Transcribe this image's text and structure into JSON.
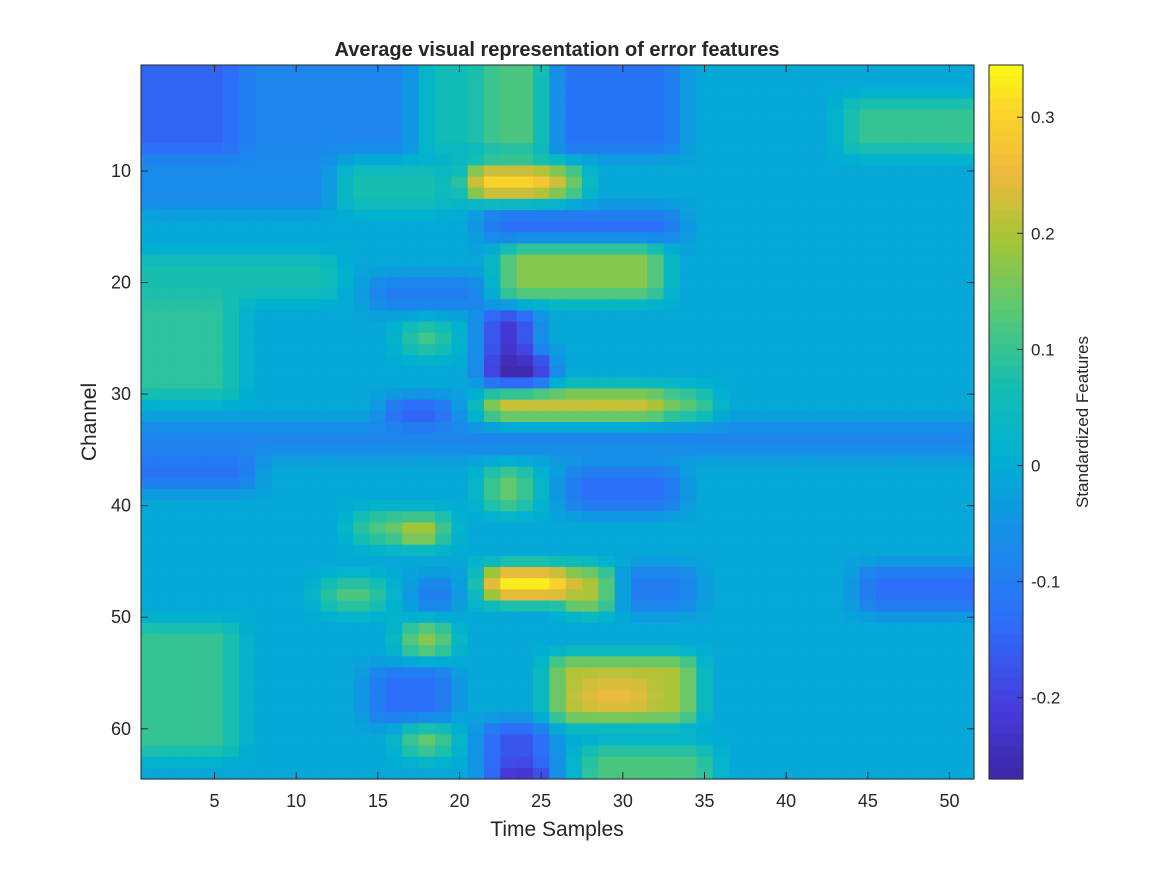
{
  "chart_data": {
    "type": "heatmap",
    "title": "Average visual representation of error features",
    "xlabel": "Time Samples",
    "ylabel": "Channel",
    "colorbar_label": "Standardized Features",
    "colormap": "parula",
    "x_range": [
      1,
      51
    ],
    "y_range": [
      1,
      64
    ],
    "y_reversed": true,
    "xticks": [
      5,
      10,
      15,
      20,
      25,
      30,
      35,
      40,
      45,
      50
    ],
    "yticks": [
      10,
      20,
      30,
      40,
      50,
      60
    ],
    "clim": [
      -0.27,
      0.345
    ],
    "colorbar_ticks": [
      0.3,
      0.2,
      0.1,
      0,
      -0.1,
      -0.2
    ],
    "colorbar_tick_labels": [
      "0.3",
      "0.2",
      "0.1",
      "0",
      "-0.1",
      "-0.2"
    ],
    "baseline_value": -0.01,
    "features": [
      {
        "channels": [
          1,
          8
        ],
        "samples": [
          1,
          6
        ],
        "value": -0.15
      },
      {
        "channels": [
          1,
          8
        ],
        "samples": [
          7,
          17
        ],
        "value": -0.08
      },
      {
        "channels": [
          1,
          8
        ],
        "samples": [
          18,
          21
        ],
        "value": 0.06
      },
      {
        "channels": [
          1,
          8
        ],
        "samples": [
          22,
          25
        ],
        "value": 0.12
      },
      {
        "channels": [
          1,
          8
        ],
        "samples": [
          26,
          33
        ],
        "value": -0.12
      },
      {
        "channels": [
          4,
          8
        ],
        "samples": [
          44,
          51
        ],
        "value": 0.1
      },
      {
        "channels": [
          9,
          13
        ],
        "samples": [
          1,
          12
        ],
        "value": -0.07
      },
      {
        "channels": [
          10,
          13
        ],
        "samples": [
          13,
          19
        ],
        "value": 0.07
      },
      {
        "channels": [
          10,
          12
        ],
        "samples": [
          21,
          25
        ],
        "value": 0.3
      },
      {
        "channels": [
          10,
          12
        ],
        "samples": [
          26,
          27
        ],
        "value": 0.2
      },
      {
        "channels": [
          14,
          16
        ],
        "samples": [
          22,
          33
        ],
        "value": -0.13
      },
      {
        "channels": [
          17,
          21
        ],
        "samples": [
          23,
          32
        ],
        "value": 0.17
      },
      {
        "channels": [
          18,
          21
        ],
        "samples": [
          1,
          12
        ],
        "value": 0.07
      },
      {
        "channels": [
          20,
          22
        ],
        "samples": [
          15,
          21
        ],
        "value": -0.1
      },
      {
        "channels": [
          22,
          30
        ],
        "samples": [
          1,
          6
        ],
        "value": 0.09
      },
      {
        "channels": [
          23,
          26
        ],
        "samples": [
          22,
          24
        ],
        "value": -0.22
      },
      {
        "channels": [
          24,
          26
        ],
        "samples": [
          17,
          19
        ],
        "value": 0.11
      },
      {
        "channels": [
          27,
          29
        ],
        "samples": [
          22,
          25
        ],
        "value": -0.26
      },
      {
        "channels": [
          30,
          32
        ],
        "samples": [
          22,
          32
        ],
        "value": 0.22
      },
      {
        "channels": [
          30,
          32
        ],
        "samples": [
          33,
          35
        ],
        "value": 0.13
      },
      {
        "channels": [
          31,
          32
        ],
        "samples": [
          16,
          19
        ],
        "value": -0.17
      },
      {
        "channels": [
          33,
          35
        ],
        "samples": [
          1,
          51
        ],
        "value": -0.08
      },
      {
        "channels": [
          36,
          38
        ],
        "samples": [
          1,
          7
        ],
        "value": -0.12
      },
      {
        "channels": [
          37,
          40
        ],
        "samples": [
          22,
          24
        ],
        "value": 0.14
      },
      {
        "channels": [
          37,
          40
        ],
        "samples": [
          27,
          33
        ],
        "value": -0.13
      },
      {
        "channels": [
          41,
          43
        ],
        "samples": [
          14,
          19
        ],
        "value": 0.12
      },
      {
        "channels": [
          42,
          43
        ],
        "samples": [
          17,
          18
        ],
        "value": 0.24
      },
      {
        "channels": [
          46,
          48
        ],
        "samples": [
          22,
          26
        ],
        "value": 0.33
      },
      {
        "channels": [
          46,
          49
        ],
        "samples": [
          27,
          29
        ],
        "value": 0.2
      },
      {
        "channels": [
          46,
          49
        ],
        "samples": [
          30,
          34
        ],
        "value": -0.1
      },
      {
        "channels": [
          46,
          49
        ],
        "samples": [
          45,
          51
        ],
        "value": -0.13
      },
      {
        "channels": [
          47,
          49
        ],
        "samples": [
          12,
          15
        ],
        "value": 0.12
      },
      {
        "channels": [
          47,
          49
        ],
        "samples": [
          18,
          19
        ],
        "value": -0.12
      },
      {
        "channels": [
          51,
          53
        ],
        "samples": [
          17,
          19
        ],
        "value": 0.17
      },
      {
        "channels": [
          51,
          62
        ],
        "samples": [
          1,
          6
        ],
        "value": 0.1
      },
      {
        "channels": [
          54,
          59
        ],
        "samples": [
          26,
          34
        ],
        "value": 0.2
      },
      {
        "channels": [
          56,
          58
        ],
        "samples": [
          28,
          31
        ],
        "value": 0.25
      },
      {
        "channels": [
          55,
          59
        ],
        "samples": [
          15,
          19
        ],
        "value": -0.13
      },
      {
        "channels": [
          60,
          62
        ],
        "samples": [
          17,
          19
        ],
        "value": 0.14
      },
      {
        "channels": [
          60,
          64
        ],
        "samples": [
          22,
          25
        ],
        "value": -0.17
      },
      {
        "channels": [
          62,
          64
        ],
        "samples": [
          28,
          35
        ],
        "value": 0.12
      },
      {
        "channels": [
          64,
          64
        ],
        "samples": [
          23,
          25
        ],
        "value": -0.25
      }
    ]
  }
}
